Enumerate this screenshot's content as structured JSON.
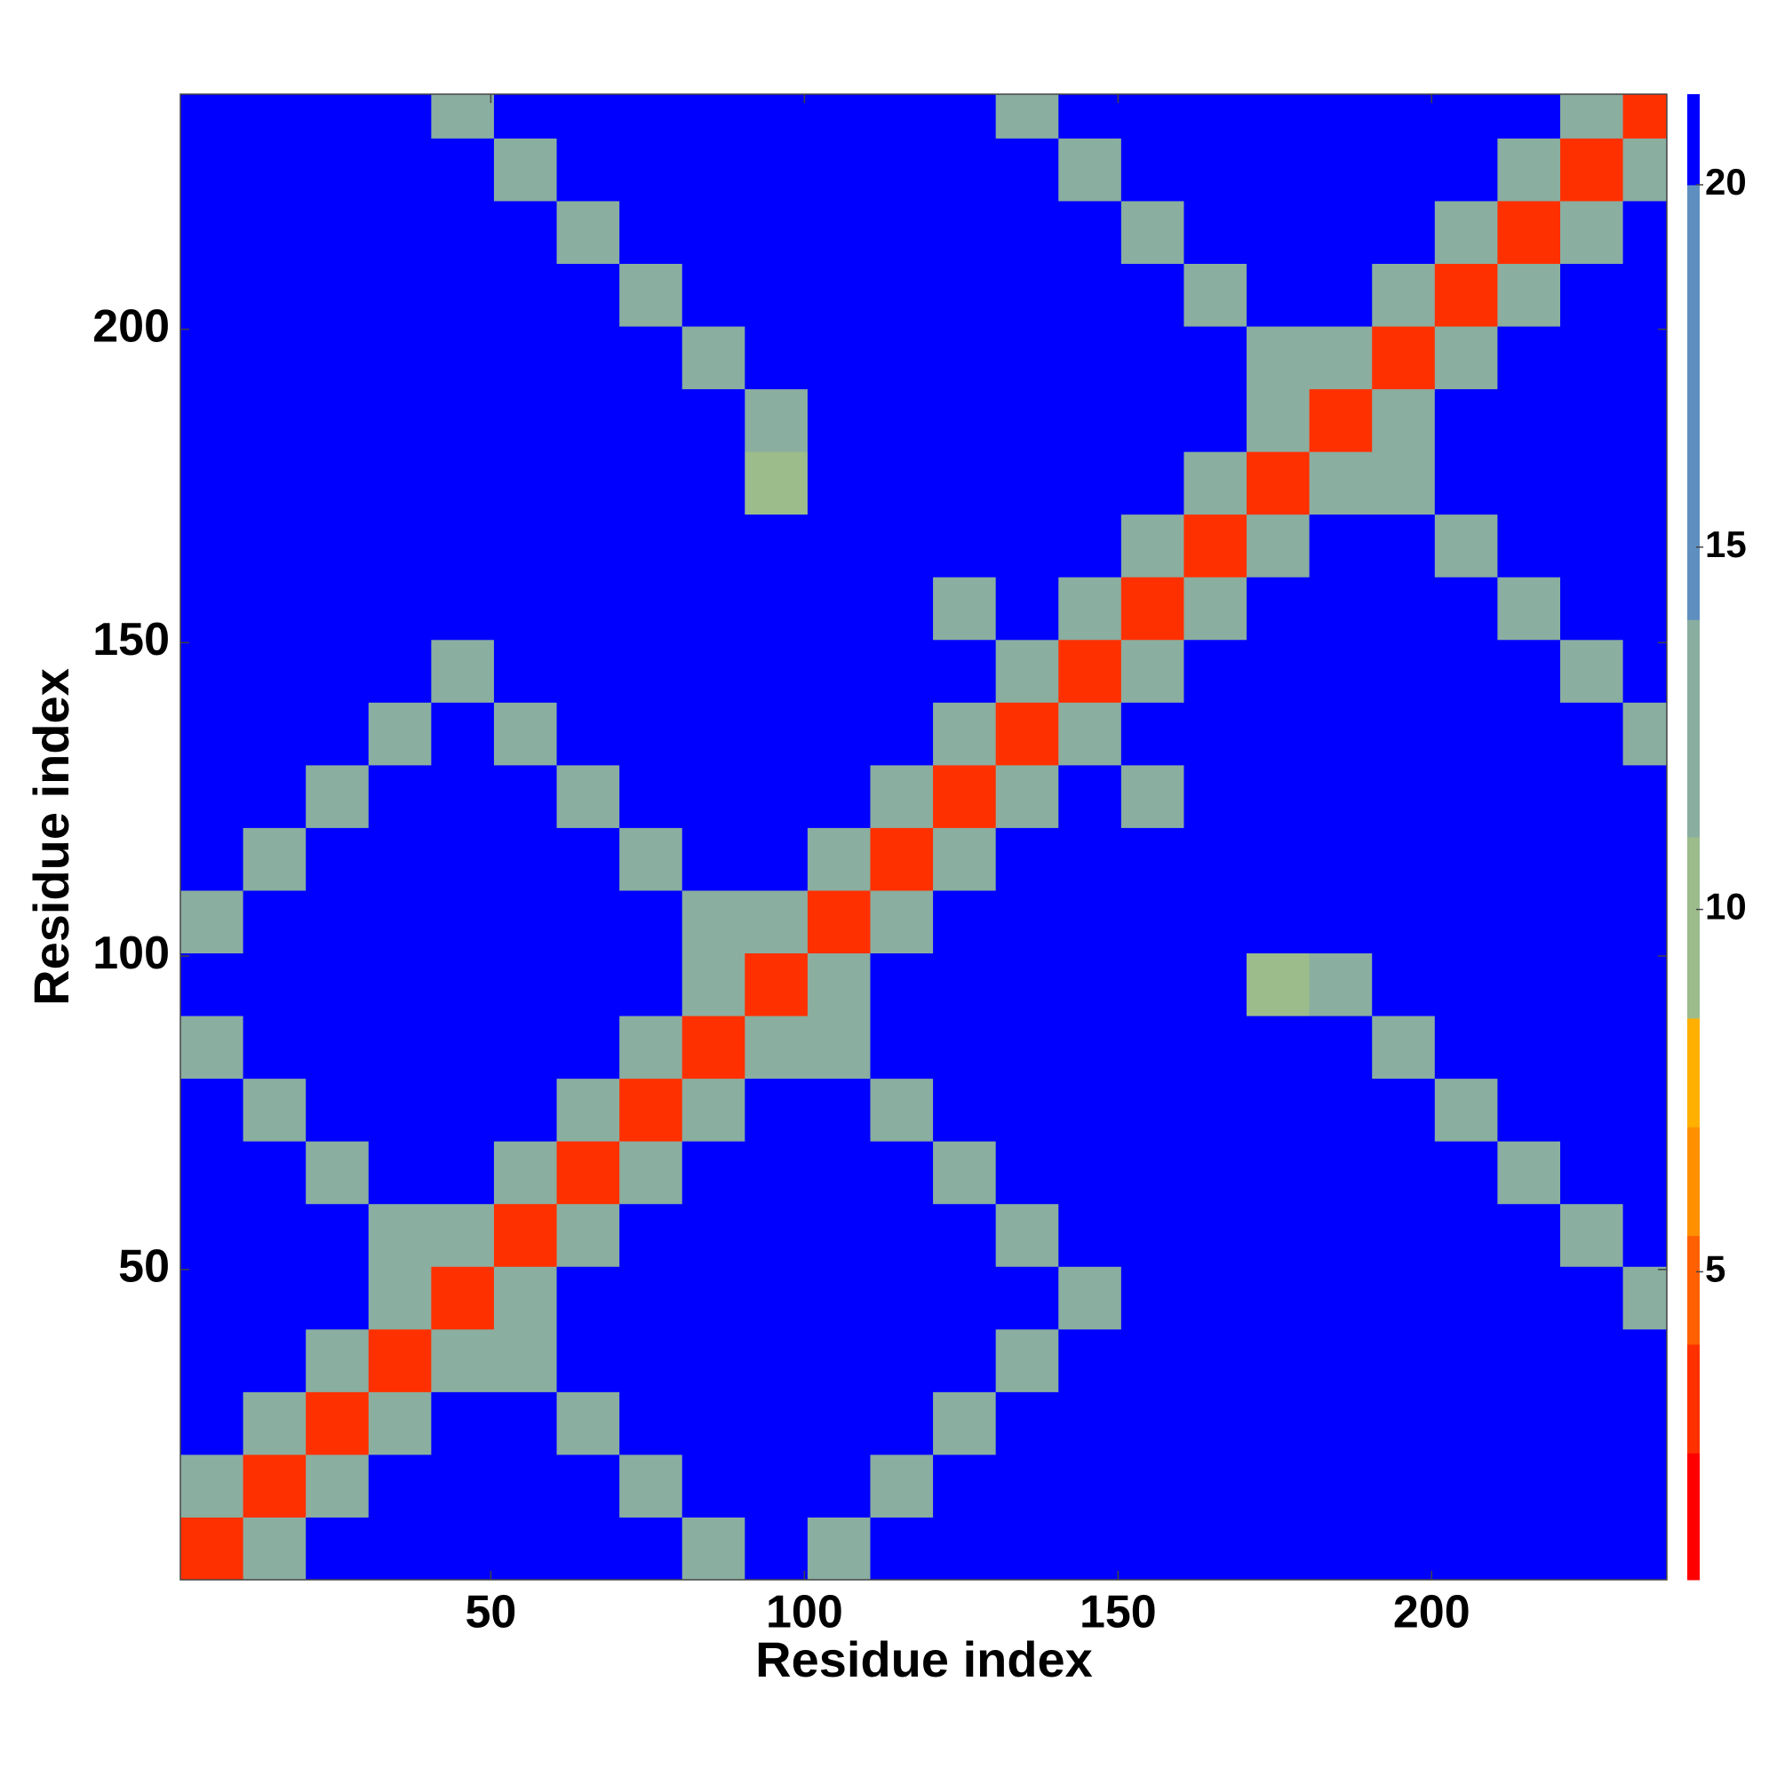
{
  "chart_data": {
    "type": "heatmap",
    "xlabel": "Residue index",
    "ylabel": "Residue index",
    "x_bins": [
      0.5,
      10.5,
      20.5,
      30.5,
      40.5,
      50.5,
      60.5,
      70.5,
      80.5,
      90.5,
      100.5,
      110.5,
      120.5,
      130.5,
      140.5,
      150.5,
      160.5,
      170.5,
      180.5,
      190.5,
      200.5,
      210.5,
      220.5,
      230.5,
      237.5
    ],
    "y_bins": [
      0.5,
      10.5,
      20.5,
      30.5,
      40.5,
      50.5,
      60.5,
      70.5,
      80.5,
      90.5,
      100.5,
      110.5,
      120.5,
      130.5,
      140.5,
      150.5,
      160.5,
      170.5,
      180.5,
      190.5,
      200.5,
      210.5,
      220.5,
      230.5,
      237.5
    ],
    "xlim": [
      0.5,
      237.5
    ],
    "ylim": [
      0.5,
      237.5
    ],
    "xticks": [
      50,
      100,
      150,
      200
    ],
    "yticks": [
      50,
      100,
      150,
      200
    ],
    "zlim": [
      0.75,
      21.25
    ],
    "zticks": [
      5,
      10,
      15,
      20
    ],
    "colorscale": [
      {
        "value": 2.5,
        "color": "#ff0000"
      },
      {
        "value": 4,
        "color": "#ff3000"
      },
      {
        "value": 5.5,
        "color": "#ff6000"
      },
      {
        "value": 7,
        "color": "#ff9000"
      },
      {
        "value": 8.5,
        "color": "#ffb000"
      },
      {
        "value": 11,
        "color": "#9cbc8c"
      },
      {
        "value": 14,
        "color": "#8aaea0"
      },
      {
        "value": 20,
        "color": "#5f8fc0"
      },
      {
        "value": 21.25,
        "color": "#0000ff"
      }
    ],
    "z": [
      [
        4,
        13,
        21,
        21,
        21,
        21,
        21,
        21,
        13,
        21,
        14,
        21,
        21,
        21,
        21,
        21,
        21,
        21,
        21,
        21,
        21,
        21,
        21,
        21
      ],
      [
        13,
        4,
        13,
        21,
        21,
        21,
        21,
        13,
        21,
        21,
        21,
        14,
        21,
        21,
        21,
        21,
        21,
        21,
        21,
        21,
        21,
        21,
        21,
        21
      ],
      [
        21,
        13,
        4,
        13,
        21,
        21,
        13,
        21,
        21,
        21,
        21,
        21,
        14,
        21,
        21,
        21,
        21,
        21,
        21,
        21,
        21,
        21,
        21,
        21
      ],
      [
        21,
        21,
        13,
        4,
        13,
        13,
        21,
        21,
        21,
        21,
        21,
        21,
        21,
        14,
        21,
        21,
        21,
        21,
        21,
        21,
        21,
        21,
        21,
        21
      ],
      [
        21,
        21,
        21,
        13,
        4,
        13,
        21,
        21,
        21,
        21,
        21,
        21,
        21,
        21,
        14,
        21,
        21,
        21,
        21,
        21,
        21,
        21,
        21,
        13
      ],
      [
        21,
        21,
        21,
        13,
        13,
        4,
        13,
        21,
        21,
        21,
        21,
        21,
        21,
        14,
        21,
        21,
        21,
        21,
        21,
        21,
        21,
        21,
        13,
        21
      ],
      [
        21,
        21,
        13,
        21,
        21,
        13,
        4,
        13,
        21,
        21,
        21,
        21,
        14,
        21,
        21,
        21,
        21,
        21,
        21,
        21,
        21,
        13,
        21,
        21
      ],
      [
        21,
        13,
        21,
        21,
        21,
        21,
        13,
        4,
        13,
        21,
        21,
        14,
        21,
        21,
        21,
        21,
        21,
        21,
        21,
        21,
        13,
        21,
        21,
        21
      ],
      [
        13,
        21,
        21,
        21,
        21,
        21,
        21,
        13,
        4,
        13,
        14,
        21,
        21,
        21,
        21,
        21,
        21,
        21,
        21,
        13,
        21,
        21,
        21,
        21
      ],
      [
        21,
        21,
        21,
        21,
        21,
        21,
        21,
        21,
        13,
        4,
        13,
        21,
        21,
        21,
        21,
        21,
        21,
        9,
        13,
        21,
        21,
        21,
        21,
        21
      ],
      [
        14,
        21,
        21,
        21,
        21,
        21,
        21,
        21,
        14,
        13,
        4,
        13,
        21,
        21,
        21,
        21,
        21,
        21,
        21,
        21,
        21,
        21,
        21,
        21
      ],
      [
        21,
        14,
        21,
        21,
        21,
        21,
        21,
        14,
        21,
        21,
        13,
        4,
        13,
        21,
        21,
        21,
        21,
        21,
        21,
        21,
        21,
        21,
        21,
        21
      ],
      [
        21,
        21,
        14,
        21,
        21,
        21,
        14,
        21,
        21,
        21,
        21,
        13,
        4,
        13,
        21,
        13,
        21,
        21,
        21,
        21,
        21,
        21,
        21,
        21
      ],
      [
        21,
        21,
        21,
        14,
        21,
        14,
        21,
        21,
        21,
        21,
        21,
        21,
        13,
        4,
        13,
        21,
        21,
        21,
        21,
        21,
        21,
        21,
        21,
        14
      ],
      [
        21,
        21,
        21,
        21,
        14,
        21,
        21,
        21,
        21,
        21,
        21,
        21,
        21,
        13,
        4,
        13,
        21,
        21,
        21,
        21,
        21,
        21,
        14,
        21
      ],
      [
        21,
        21,
        21,
        21,
        21,
        21,
        21,
        21,
        21,
        21,
        21,
        21,
        13,
        21,
        13,
        4,
        13,
        21,
        21,
        21,
        21,
        14,
        21,
        21
      ],
      [
        21,
        21,
        21,
        21,
        21,
        21,
        21,
        21,
        21,
        21,
        21,
        21,
        21,
        21,
        21,
        13,
        4,
        13,
        21,
        21,
        14,
        21,
        21,
        21
      ],
      [
        21,
        21,
        21,
        21,
        21,
        21,
        21,
        21,
        21,
        9,
        21,
        21,
        21,
        21,
        21,
        21,
        13,
        4,
        13,
        14,
        21,
        21,
        21,
        21
      ],
      [
        21,
        21,
        21,
        21,
        21,
        21,
        21,
        21,
        21,
        13,
        21,
        21,
        21,
        21,
        21,
        21,
        21,
        13,
        4,
        13,
        21,
        21,
        21,
        21
      ],
      [
        21,
        21,
        21,
        21,
        21,
        21,
        21,
        21,
        13,
        21,
        21,
        21,
        21,
        21,
        21,
        21,
        21,
        14,
        13,
        4,
        13,
        21,
        21,
        21
      ],
      [
        21,
        21,
        21,
        21,
        21,
        21,
        21,
        13,
        21,
        21,
        21,
        21,
        21,
        21,
        21,
        21,
        14,
        21,
        21,
        13,
        4,
        13,
        21,
        21
      ],
      [
        21,
        21,
        21,
        21,
        21,
        21,
        13,
        21,
        21,
        21,
        21,
        21,
        21,
        21,
        21,
        14,
        21,
        21,
        21,
        21,
        13,
        4,
        13,
        21
      ],
      [
        21,
        21,
        21,
        21,
        21,
        13,
        21,
        21,
        21,
        21,
        21,
        21,
        21,
        21,
        14,
        21,
        21,
        21,
        21,
        21,
        21,
        13,
        4,
        13
      ],
      [
        21,
        21,
        21,
        21,
        13,
        21,
        21,
        21,
        21,
        21,
        21,
        21,
        21,
        14,
        21,
        21,
        21,
        21,
        21,
        21,
        21,
        21,
        13,
        4
      ]
    ]
  }
}
